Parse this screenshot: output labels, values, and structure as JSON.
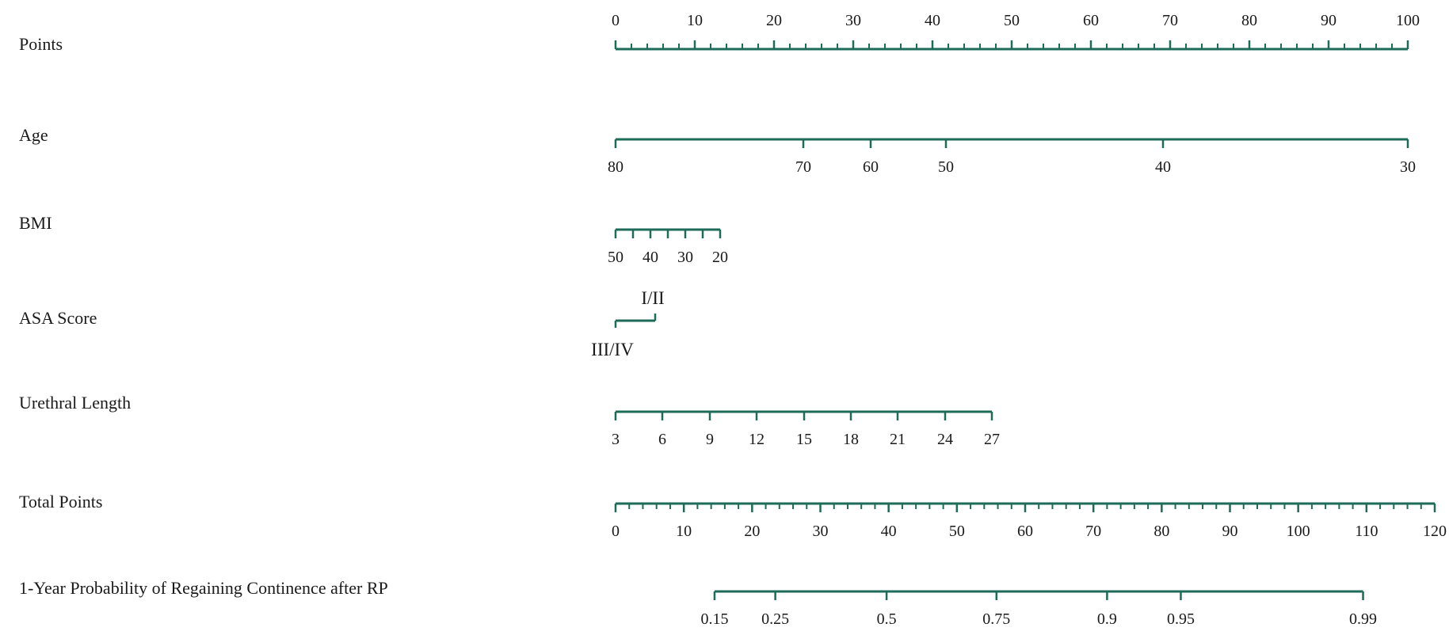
{
  "chart_data": {
    "type": "nomogram",
    "colors": {
      "axis": "#1d6b58",
      "text": "#1a1a1a",
      "background": "#ffffff"
    },
    "rows": [
      {
        "label": "Points",
        "points_range": [
          0,
          100
        ],
        "labels_position": "above",
        "ticks": [
          {
            "value": "0",
            "points": 0
          },
          {
            "value": "10",
            "points": 10
          },
          {
            "value": "20",
            "points": 20
          },
          {
            "value": "30",
            "points": 30
          },
          {
            "value": "40",
            "points": 40
          },
          {
            "value": "50",
            "points": 50
          },
          {
            "value": "60",
            "points": 60
          },
          {
            "value": "70",
            "points": 70
          },
          {
            "value": "80",
            "points": 80
          },
          {
            "value": "90",
            "points": 90
          },
          {
            "value": "100",
            "points": 100
          }
        ],
        "minor_step_points": 2
      },
      {
        "label": "Age",
        "points_range": [
          0,
          100
        ],
        "labels_position": "below",
        "ticks": [
          {
            "value": "80",
            "points": 0
          },
          {
            "value": "70",
            "points": 23.7
          },
          {
            "value": "60",
            "points": 32.2
          },
          {
            "value": "50",
            "points": 41.7
          },
          {
            "value": "40",
            "points": 69.1
          },
          {
            "value": "30",
            "points": 100
          }
        ]
      },
      {
        "label": "BMI",
        "points_range": [
          0,
          13.2
        ],
        "labels_position": "below",
        "ticks": [
          {
            "value": "50",
            "points": 0
          },
          {
            "value": "",
            "points": 2.2
          },
          {
            "value": "40",
            "points": 4.4
          },
          {
            "value": "",
            "points": 6.6
          },
          {
            "value": "30",
            "points": 8.8
          },
          {
            "value": "",
            "points": 11.0
          },
          {
            "value": "20",
            "points": 13.2
          }
        ]
      },
      {
        "label": "ASA Score",
        "type": "categorical",
        "points_range": [
          0,
          5
        ],
        "categories": [
          {
            "value": "III/IV",
            "points": 0,
            "position": "below"
          },
          {
            "value": "I/II",
            "points": 5,
            "position": "above"
          }
        ]
      },
      {
        "label": "Urethral Length",
        "points_range": [
          0,
          47.5
        ],
        "labels_position": "below",
        "ticks": [
          {
            "value": "3",
            "points": 0
          },
          {
            "value": "6",
            "points": 5.9
          },
          {
            "value": "9",
            "points": 11.9
          },
          {
            "value": "12",
            "points": 17.8
          },
          {
            "value": "15",
            "points": 23.8
          },
          {
            "value": "18",
            "points": 29.7
          },
          {
            "value": "21",
            "points": 35.6
          },
          {
            "value": "24",
            "points": 41.6
          },
          {
            "value": "27",
            "points": 47.5
          }
        ]
      },
      {
        "label": "Total Points",
        "scale": "total",
        "total_range": [
          0,
          120
        ],
        "labels_position": "below",
        "ticks": [
          {
            "value": "0",
            "total": 0
          },
          {
            "value": "10",
            "total": 10
          },
          {
            "value": "20",
            "total": 20
          },
          {
            "value": "30",
            "total": 30
          },
          {
            "value": "40",
            "total": 40
          },
          {
            "value": "50",
            "total": 50
          },
          {
            "value": "60",
            "total": 60
          },
          {
            "value": "70",
            "total": 70
          },
          {
            "value": "80",
            "total": 80
          },
          {
            "value": "90",
            "total": 90
          },
          {
            "value": "100",
            "total": 100
          },
          {
            "value": "110",
            "total": 110
          },
          {
            "value": "120",
            "total": 120
          }
        ],
        "minor_step_total": 2
      },
      {
        "label": "1-Year Probability of Regaining Continence after RP",
        "scale": "total",
        "total_range": [
          0,
          120
        ],
        "labels_position": "below",
        "ticks": [
          {
            "value": "0.15",
            "total": 14.5
          },
          {
            "value": "0.25",
            "total": 23.4
          },
          {
            "value": "0.5",
            "total": 39.7
          },
          {
            "value": "0.75",
            "total": 55.8
          },
          {
            "value": "0.9",
            "total": 72.0
          },
          {
            "value": "0.95",
            "total": 82.8
          },
          {
            "value": "0.99",
            "total": 109.5
          }
        ]
      }
    ]
  }
}
